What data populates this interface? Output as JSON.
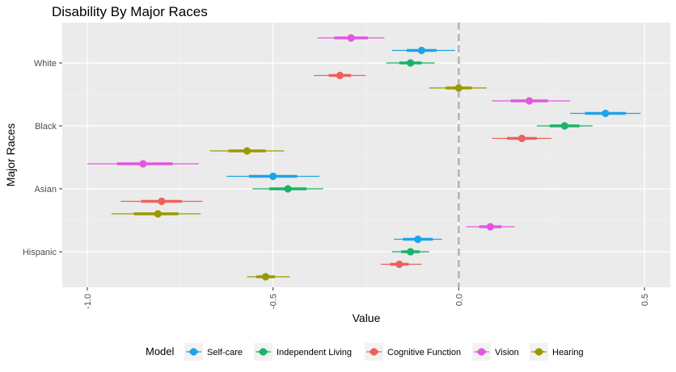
{
  "chart_data": {
    "type": "forest-plot",
    "title": "Disability By Major Races",
    "xlabel": "Value",
    "ylabel": "Major Races",
    "xlim": [
      -1.0,
      0.5
    ],
    "x_ticks": [
      -1.0,
      -0.5,
      0.0,
      0.5
    ],
    "x_tick_labels": [
      "-1.0",
      "-0.5",
      "0.0",
      "0.5"
    ],
    "reference_line": 0,
    "categories": [
      "White",
      "Black",
      "Asian",
      "Hispanic"
    ],
    "legend_title": "Model",
    "legend_position": "bottom",
    "series": [
      {
        "name": "Self-care",
        "color": "#1fa3e8",
        "estimates": [
          -0.1,
          0.395,
          -0.5,
          -0.11
        ],
        "inner": [
          [
            -0.14,
            -0.06
          ],
          [
            0.34,
            0.45
          ],
          [
            -0.565,
            -0.435
          ],
          [
            -0.15,
            -0.07
          ]
        ],
        "outer": [
          [
            -0.18,
            -0.01
          ],
          [
            0.3,
            0.49
          ],
          [
            -0.625,
            -0.375
          ],
          [
            -0.175,
            -0.045
          ]
        ]
      },
      {
        "name": "Independent Living",
        "color": "#19b36b",
        "estimates": [
          -0.13,
          0.285,
          -0.46,
          -0.13
        ],
        "inner": [
          [
            -0.16,
            -0.1
          ],
          [
            0.245,
            0.325
          ],
          [
            -0.51,
            -0.41
          ],
          [
            -0.155,
            -0.105
          ]
        ],
        "outer": [
          [
            -0.195,
            -0.065
          ],
          [
            0.21,
            0.36
          ],
          [
            -0.555,
            -0.365
          ],
          [
            -0.18,
            -0.08
          ]
        ]
      },
      {
        "name": "Cognitive Function",
        "color": "#f0605a",
        "estimates": [
          -0.32,
          0.17,
          -0.8,
          -0.16
        ],
        "inner": [
          [
            -0.35,
            -0.29
          ],
          [
            0.13,
            0.21
          ],
          [
            -0.855,
            -0.745
          ],
          [
            -0.185,
            -0.135
          ]
        ],
        "outer": [
          [
            -0.39,
            -0.25
          ],
          [
            0.09,
            0.25
          ],
          [
            -0.91,
            -0.69
          ],
          [
            -0.21,
            -0.1
          ]
        ]
      },
      {
        "name": "Vision",
        "color": "#e356e0",
        "estimates": [
          -0.29,
          0.19,
          -0.85,
          0.085
        ],
        "inner": [
          [
            -0.335,
            -0.245
          ],
          [
            0.14,
            0.24
          ],
          [
            -0.92,
            -0.77
          ],
          [
            0.055,
            0.115
          ]
        ],
        "outer": [
          [
            -0.38,
            -0.2
          ],
          [
            0.09,
            0.3
          ],
          [
            -1.0,
            -0.7
          ],
          [
            0.02,
            0.15
          ]
        ]
      },
      {
        "name": "Hearing",
        "color": "#999a00",
        "estimates": [
          0.0,
          -0.57,
          -0.81,
          -0.52
        ],
        "inner": [
          [
            -0.035,
            0.035
          ],
          [
            -0.62,
            -0.52
          ],
          [
            -0.875,
            -0.755
          ],
          [
            -0.545,
            -0.495
          ]
        ],
        "outer": [
          [
            -0.08,
            0.075
          ],
          [
            -0.67,
            -0.47
          ],
          [
            -0.935,
            -0.695
          ],
          [
            -0.57,
            -0.455
          ]
        ]
      }
    ]
  }
}
